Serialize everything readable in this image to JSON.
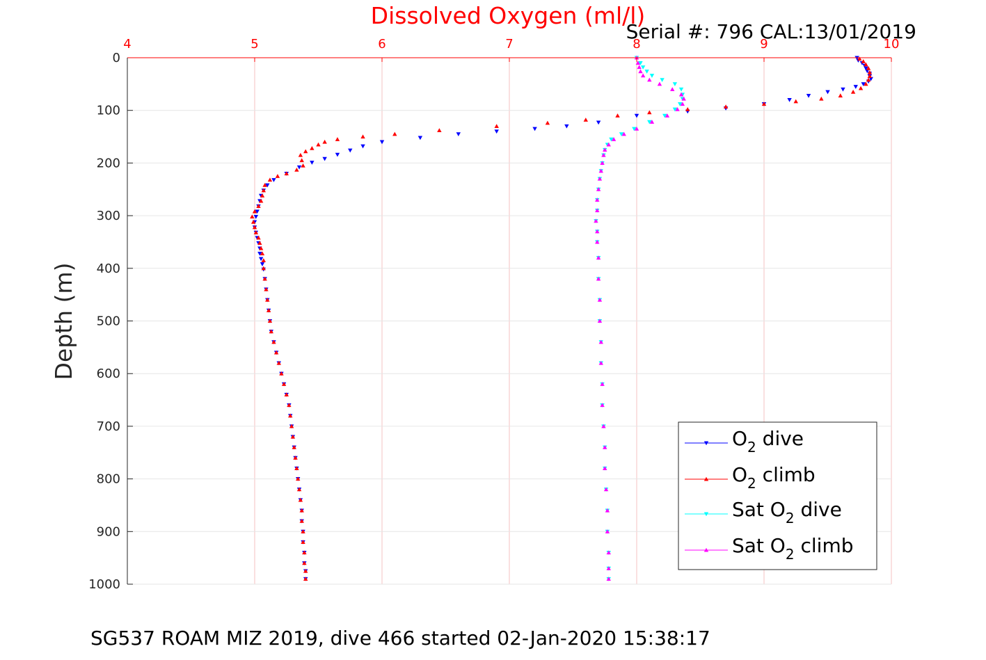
{
  "chart_data": {
    "type": "scatter",
    "title": "Dissolved Oxygen (ml/l)",
    "subtitle": "Serial #: 796  CAL:13/01/2019",
    "xlabel": "Dissolved Oxygen (ml/l)",
    "ylabel": "Depth (m)",
    "footer": "SG537 ROAM MIZ 2019, dive 466 started 02-Jan-2020 15:38:17",
    "xlim": [
      4,
      10
    ],
    "ylim": [
      0,
      1000
    ],
    "y_reversed": true,
    "x_axis_position": "top",
    "x_ticks": [
      "4",
      "5",
      "6",
      "7",
      "8",
      "9",
      "10"
    ],
    "y_ticks": [
      "0",
      "100",
      "200",
      "300",
      "400",
      "500",
      "600",
      "700",
      "800",
      "900",
      "1000"
    ],
    "grid": true,
    "legend_position": "bottom-right",
    "series": [
      {
        "name": "O2 dive",
        "legend_main": "O",
        "legend_sub": "2",
        "legend_rest": " dive",
        "color": "#0000ff",
        "marker": "triangle-down",
        "points": [
          [
            9.73,
            0
          ],
          [
            9.74,
            5
          ],
          [
            9.77,
            10
          ],
          [
            9.79,
            15
          ],
          [
            9.8,
            20
          ],
          [
            9.81,
            25
          ],
          [
            9.83,
            30
          ],
          [
            9.83,
            35
          ],
          [
            9.84,
            40
          ],
          [
            9.82,
            45
          ],
          [
            9.78,
            50
          ],
          [
            9.72,
            55
          ],
          [
            9.62,
            60
          ],
          [
            9.5,
            65
          ],
          [
            9.35,
            72
          ],
          [
            9.2,
            80
          ],
          [
            9.0,
            88
          ],
          [
            8.7,
            96
          ],
          [
            8.4,
            102
          ],
          [
            8.0,
            110
          ],
          [
            7.7,
            123
          ],
          [
            7.45,
            130
          ],
          [
            7.2,
            135
          ],
          [
            6.9,
            140
          ],
          [
            6.6,
            145
          ],
          [
            6.3,
            152
          ],
          [
            6.0,
            160
          ],
          [
            5.85,
            168
          ],
          [
            5.75,
            176
          ],
          [
            5.65,
            184
          ],
          [
            5.55,
            192
          ],
          [
            5.45,
            199
          ],
          [
            5.35,
            208
          ],
          [
            5.25,
            220
          ],
          [
            5.15,
            232
          ],
          [
            5.1,
            242
          ],
          [
            5.07,
            252
          ],
          [
            5.05,
            262
          ],
          [
            5.04,
            272
          ],
          [
            5.03,
            282
          ],
          [
            5.02,
            292
          ],
          [
            5.01,
            302
          ],
          [
            5.0,
            312
          ],
          [
            5.0,
            322
          ],
          [
            5.01,
            332
          ],
          [
            5.02,
            342
          ],
          [
            5.03,
            352
          ],
          [
            5.04,
            362
          ],
          [
            5.04,
            372
          ],
          [
            5.05,
            382
          ],
          [
            5.06,
            392
          ],
          [
            5.07,
            402
          ],
          [
            5.08,
            420
          ],
          [
            5.09,
            440
          ],
          [
            5.1,
            460
          ],
          [
            5.11,
            480
          ],
          [
            5.12,
            500
          ],
          [
            5.13,
            520
          ],
          [
            5.15,
            540
          ],
          [
            5.17,
            560
          ],
          [
            5.19,
            580
          ],
          [
            5.21,
            600
          ],
          [
            5.23,
            620
          ],
          [
            5.25,
            640
          ],
          [
            5.27,
            660
          ],
          [
            5.28,
            680
          ],
          [
            5.29,
            700
          ],
          [
            5.3,
            720
          ],
          [
            5.31,
            740
          ],
          [
            5.32,
            760
          ],
          [
            5.33,
            780
          ],
          [
            5.34,
            800
          ],
          [
            5.35,
            820
          ],
          [
            5.36,
            840
          ],
          [
            5.37,
            860
          ],
          [
            5.37,
            880
          ],
          [
            5.38,
            900
          ],
          [
            5.38,
            920
          ],
          [
            5.39,
            940
          ],
          [
            5.39,
            960
          ],
          [
            5.4,
            975
          ],
          [
            5.4,
            990
          ]
        ]
      },
      {
        "name": "O2 climb",
        "legend_main": "O",
        "legend_sub": "2",
        "legend_rest": " climb",
        "color": "#ff0000",
        "marker": "triangle-up",
        "points": [
          [
            5.4,
            990
          ],
          [
            5.4,
            975
          ],
          [
            5.39,
            960
          ],
          [
            5.39,
            940
          ],
          [
            5.38,
            920
          ],
          [
            5.38,
            900
          ],
          [
            5.37,
            880
          ],
          [
            5.37,
            860
          ],
          [
            5.36,
            840
          ],
          [
            5.35,
            820
          ],
          [
            5.34,
            800
          ],
          [
            5.33,
            780
          ],
          [
            5.32,
            760
          ],
          [
            5.31,
            740
          ],
          [
            5.3,
            720
          ],
          [
            5.29,
            700
          ],
          [
            5.28,
            680
          ],
          [
            5.27,
            660
          ],
          [
            5.25,
            640
          ],
          [
            5.23,
            620
          ],
          [
            5.21,
            600
          ],
          [
            5.19,
            580
          ],
          [
            5.17,
            560
          ],
          [
            5.15,
            540
          ],
          [
            5.13,
            520
          ],
          [
            5.12,
            500
          ],
          [
            5.11,
            480
          ],
          [
            5.1,
            460
          ],
          [
            5.09,
            440
          ],
          [
            5.08,
            420
          ],
          [
            5.07,
            400
          ],
          [
            5.07,
            385
          ],
          [
            5.06,
            372
          ],
          [
            5.05,
            362
          ],
          [
            5.04,
            352
          ],
          [
            5.03,
            342
          ],
          [
            5.01,
            332
          ],
          [
            5.0,
            322
          ],
          [
            4.99,
            312
          ],
          [
            4.98,
            302
          ],
          [
            5.0,
            292
          ],
          [
            5.03,
            282
          ],
          [
            5.05,
            272
          ],
          [
            5.06,
            262
          ],
          [
            5.07,
            252
          ],
          [
            5.08,
            242
          ],
          [
            5.12,
            232
          ],
          [
            5.18,
            225
          ],
          [
            5.25,
            220
          ],
          [
            5.33,
            213
          ],
          [
            5.38,
            205
          ],
          [
            5.37,
            195
          ],
          [
            5.36,
            185
          ],
          [
            5.4,
            178
          ],
          [
            5.45,
            172
          ],
          [
            5.5,
            165
          ],
          [
            5.55,
            160
          ],
          [
            5.65,
            155
          ],
          [
            5.85,
            150
          ],
          [
            6.1,
            145
          ],
          [
            6.45,
            138
          ],
          [
            6.9,
            130
          ],
          [
            7.3,
            124
          ],
          [
            7.6,
            118
          ],
          [
            7.85,
            110
          ],
          [
            8.1,
            104
          ],
          [
            8.4,
            98
          ],
          [
            8.7,
            93
          ],
          [
            9.0,
            88
          ],
          [
            9.25,
            83
          ],
          [
            9.45,
            78
          ],
          [
            9.6,
            72
          ],
          [
            9.7,
            65
          ],
          [
            9.76,
            58
          ],
          [
            9.8,
            50
          ],
          [
            9.82,
            42
          ],
          [
            9.83,
            35
          ],
          [
            9.83,
            28
          ],
          [
            9.82,
            20
          ],
          [
            9.8,
            13
          ],
          [
            9.78,
            7
          ],
          [
            9.75,
            2
          ]
        ]
      },
      {
        "name": "Sat O2 dive",
        "legend_main": "Sat O",
        "legend_sub": "2",
        "legend_rest": " dive",
        "color": "#00ffff",
        "marker": "triangle-down",
        "points": [
          [
            8.0,
            0
          ],
          [
            8.03,
            10
          ],
          [
            8.05,
            18
          ],
          [
            8.08,
            26
          ],
          [
            8.12,
            34
          ],
          [
            8.2,
            42
          ],
          [
            8.3,
            50
          ],
          [
            8.35,
            60
          ],
          [
            8.36,
            70
          ],
          [
            8.36,
            78
          ],
          [
            8.34,
            88
          ],
          [
            8.3,
            98
          ],
          [
            8.22,
            110
          ],
          [
            8.1,
            122
          ],
          [
            7.98,
            135
          ],
          [
            7.88,
            145
          ],
          [
            7.8,
            155
          ],
          [
            7.77,
            165
          ],
          [
            7.75,
            175
          ],
          [
            7.74,
            185
          ],
          [
            7.73,
            200
          ],
          [
            7.72,
            215
          ],
          [
            7.71,
            230
          ],
          [
            7.7,
            250
          ],
          [
            7.69,
            270
          ],
          [
            7.69,
            290
          ],
          [
            7.68,
            310
          ],
          [
            7.69,
            330
          ],
          [
            7.69,
            350
          ],
          [
            7.7,
            380
          ],
          [
            7.7,
            420
          ],
          [
            7.71,
            460
          ],
          [
            7.71,
            500
          ],
          [
            7.72,
            540
          ],
          [
            7.72,
            580
          ],
          [
            7.73,
            620
          ],
          [
            7.73,
            660
          ],
          [
            7.74,
            700
          ],
          [
            7.75,
            740
          ],
          [
            7.75,
            780
          ],
          [
            7.76,
            820
          ],
          [
            7.77,
            860
          ],
          [
            7.77,
            900
          ],
          [
            7.78,
            940
          ],
          [
            7.78,
            970
          ],
          [
            7.78,
            990
          ]
        ]
      },
      {
        "name": "Sat O2 climb",
        "legend_main": "Sat O",
        "legend_sub": "2",
        "legend_rest": " climb",
        "color": "#ff00ff",
        "marker": "triangle-up",
        "points": [
          [
            7.78,
            990
          ],
          [
            7.78,
            970
          ],
          [
            7.78,
            940
          ],
          [
            7.77,
            900
          ],
          [
            7.77,
            860
          ],
          [
            7.76,
            820
          ],
          [
            7.75,
            780
          ],
          [
            7.75,
            740
          ],
          [
            7.74,
            700
          ],
          [
            7.73,
            660
          ],
          [
            7.73,
            620
          ],
          [
            7.72,
            580
          ],
          [
            7.72,
            540
          ],
          [
            7.71,
            500
          ],
          [
            7.71,
            460
          ],
          [
            7.7,
            420
          ],
          [
            7.7,
            380
          ],
          [
            7.69,
            350
          ],
          [
            7.69,
            330
          ],
          [
            7.68,
            310
          ],
          [
            7.69,
            290
          ],
          [
            7.69,
            270
          ],
          [
            7.7,
            250
          ],
          [
            7.71,
            230
          ],
          [
            7.72,
            215
          ],
          [
            7.73,
            200
          ],
          [
            7.74,
            185
          ],
          [
            7.75,
            175
          ],
          [
            7.78,
            165
          ],
          [
            7.82,
            155
          ],
          [
            7.9,
            145
          ],
          [
            8.0,
            135
          ],
          [
            8.12,
            122
          ],
          [
            8.24,
            110
          ],
          [
            8.32,
            98
          ],
          [
            8.36,
            88
          ],
          [
            8.37,
            78
          ],
          [
            8.35,
            70
          ],
          [
            8.28,
            60
          ],
          [
            8.18,
            50
          ],
          [
            8.1,
            42
          ],
          [
            8.05,
            34
          ],
          [
            8.03,
            26
          ],
          [
            8.02,
            18
          ],
          [
            8.01,
            10
          ],
          [
            8.0,
            0
          ]
        ]
      }
    ]
  }
}
